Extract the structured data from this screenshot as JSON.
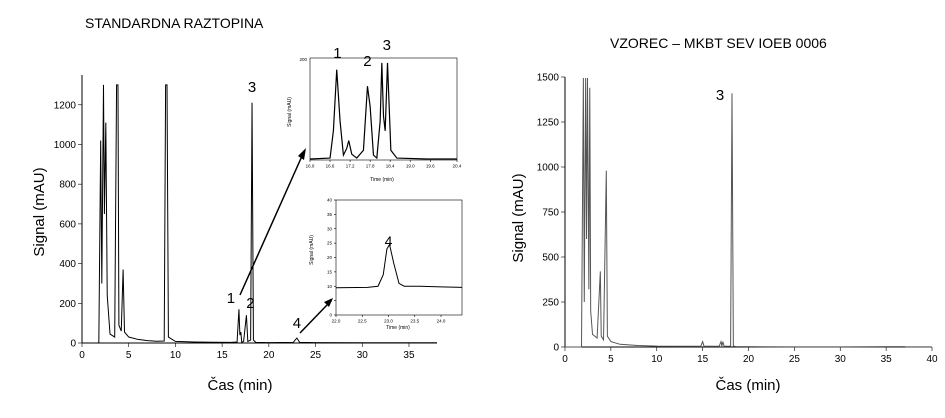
{
  "chart_data": [
    {
      "type": "line",
      "title": "STANDARDNA RAZTOPINA",
      "xlabel": "Čas (min)",
      "ylabel": "Signal (mAU)",
      "xlim": [
        0,
        38
      ],
      "ylim": [
        0,
        1350
      ],
      "xticks": [
        "0",
        "5",
        "10",
        "15",
        "20",
        "25",
        "30",
        "35"
      ],
      "yticks": [
        "0",
        "200",
        "400",
        "600",
        "800",
        "1000",
        "1200"
      ],
      "line_color": "#000000",
      "peak_labels": [
        {
          "label": "1",
          "x": 16.8,
          "y": 170
        },
        {
          "label": "2",
          "x": 17.6,
          "y": 140
        },
        {
          "label": "3",
          "x": 18.2,
          "y": 1210
        },
        {
          "label": "4",
          "x": 23.0,
          "y": 25
        }
      ],
      "series": [
        {
          "points": [
            [
              0,
              0
            ],
            [
              1.8,
              0
            ],
            [
              2.0,
              1020
            ],
            [
              2.12,
              300
            ],
            [
              2.3,
              1300
            ],
            [
              2.4,
              650
            ],
            [
              2.55,
              1110
            ],
            [
              2.7,
              240
            ],
            [
              3.0,
              45
            ],
            [
              3.5,
              30
            ],
            [
              3.7,
              1300
            ],
            [
              3.85,
              1300
            ],
            [
              3.95,
              90
            ],
            [
              4.2,
              60
            ],
            [
              4.4,
              370
            ],
            [
              4.55,
              55
            ],
            [
              5,
              30
            ],
            [
              6,
              18
            ],
            [
              7,
              12
            ],
            [
              8,
              9
            ],
            [
              8.8,
              10
            ],
            [
              8.95,
              1300
            ],
            [
              9.1,
              1300
            ],
            [
              9.25,
              30
            ],
            [
              10,
              8
            ],
            [
              12,
              5
            ],
            [
              14,
              4
            ],
            [
              16,
              3
            ],
            [
              16.6,
              5
            ],
            [
              16.8,
              170
            ],
            [
              16.9,
              40
            ],
            [
              17.0,
              55
            ],
            [
              17.1,
              4
            ],
            [
              17.3,
              8
            ],
            [
              17.6,
              140
            ],
            [
              17.75,
              8
            ],
            [
              18.05,
              15
            ],
            [
              18.2,
              1210
            ],
            [
              18.35,
              15
            ],
            [
              18.6,
              3
            ],
            [
              20,
              2
            ],
            [
              22.6,
              3
            ],
            [
              23.0,
              25
            ],
            [
              23.3,
              3
            ],
            [
              25,
              2
            ],
            [
              30,
              1
            ],
            [
              35,
              1
            ],
            [
              38,
              1
            ]
          ]
        }
      ]
    },
    {
      "type": "line",
      "title": "",
      "xlabel": "Time (min)",
      "ylabel": "Signal (mAU)",
      "xlim": [
        16.0,
        20.4
      ],
      "xticks": [
        "16.0",
        "16.6",
        "17.2",
        "17.8",
        "18.4",
        "19.0",
        "19.6",
        "20.4"
      ],
      "yticks": [
        "200"
      ],
      "line_color": "#000000",
      "peak_labels": [
        {
          "label": "1",
          "x": 16.82
        },
        {
          "label": "2",
          "x": 17.72
        },
        {
          "label": "3",
          "x": 18.3
        }
      ],
      "series": [
        {
          "points": [
            [
              16.0,
              0.01
            ],
            [
              16.6,
              0.02
            ],
            [
              16.7,
              0.3
            ],
            [
              16.8,
              0.93
            ],
            [
              16.9,
              0.4
            ],
            [
              17.0,
              0.05
            ],
            [
              17.1,
              0.12
            ],
            [
              17.16,
              0.2
            ],
            [
              17.25,
              0.06
            ],
            [
              17.4,
              0.02
            ],
            [
              17.6,
              0.1
            ],
            [
              17.72,
              0.76
            ],
            [
              17.8,
              0.55
            ],
            [
              17.9,
              0.05
            ],
            [
              18.0,
              0.02
            ],
            [
              18.1,
              0.4
            ],
            [
              18.15,
              1.0
            ],
            [
              18.2,
              0.45
            ],
            [
              18.25,
              0.3
            ],
            [
              18.32,
              1.0
            ],
            [
              18.42,
              0.1
            ],
            [
              18.6,
              0.02
            ],
            [
              19.5,
              0.01
            ],
            [
              20.4,
              0.01
            ]
          ]
        }
      ]
    },
    {
      "type": "line",
      "title": "",
      "xlabel": "Time (min)",
      "ylabel": "Signal (mAU)",
      "xlim": [
        22.0,
        24.4
      ],
      "ylim": [
        0,
        40
      ],
      "xticks": [
        "22.0",
        "22.5",
        "23.0",
        "23.5",
        "24.0"
      ],
      "yticks": [
        "0",
        "5",
        "10",
        "15",
        "20",
        "25",
        "30",
        "35",
        "40"
      ],
      "line_color": "#000000",
      "peak_labels": [
        {
          "label": "4",
          "x": 23.0,
          "y": 25
        }
      ],
      "series": [
        {
          "points": [
            [
              22.0,
              9.5
            ],
            [
              22.6,
              9.6
            ],
            [
              22.8,
              10
            ],
            [
              22.9,
              14
            ],
            [
              22.97,
              23
            ],
            [
              23.02,
              24.5
            ],
            [
              23.1,
              18
            ],
            [
              23.2,
              11
            ],
            [
              23.3,
              10
            ],
            [
              23.6,
              10
            ],
            [
              24.0,
              9.8
            ],
            [
              24.4,
              9.6
            ]
          ]
        }
      ]
    },
    {
      "type": "line",
      "title": "VZOREC – MKBT SEV IOEB 0006",
      "xlabel": "Čas (min)",
      "ylabel": "Signal (mAU)",
      "xlim": [
        0,
        40
      ],
      "ylim": [
        0,
        1500
      ],
      "xticks": [
        "0",
        "5",
        "10",
        "15",
        "20",
        "25",
        "30",
        "35",
        "40"
      ],
      "yticks": [
        "0",
        "250",
        "500",
        "750",
        "1000",
        "1250",
        "1500"
      ],
      "line_color": "#555555",
      "peak_labels": [
        {
          "label": "3",
          "x": 18.2,
          "y": 1410
        }
      ],
      "series": [
        {
          "points": [
            [
              0,
              0
            ],
            [
              1.8,
              0
            ],
            [
              2.0,
              1500
            ],
            [
              2.1,
              250
            ],
            [
              2.25,
              1500
            ],
            [
              2.35,
              600
            ],
            [
              2.45,
              1500
            ],
            [
              2.6,
              320
            ],
            [
              2.7,
              1440
            ],
            [
              2.8,
              200
            ],
            [
              3.0,
              70
            ],
            [
              3.5,
              50
            ],
            [
              3.85,
              420
            ],
            [
              3.95,
              60
            ],
            [
              4.2,
              40
            ],
            [
              4.5,
              980
            ],
            [
              4.62,
              60
            ],
            [
              5,
              30
            ],
            [
              6,
              15
            ],
            [
              8,
              8
            ],
            [
              10,
              5
            ],
            [
              14.8,
              4
            ],
            [
              15.0,
              30
            ],
            [
              15.15,
              4
            ],
            [
              16.8,
              4
            ],
            [
              17.0,
              30
            ],
            [
              17.1,
              5
            ],
            [
              17.2,
              30
            ],
            [
              17.35,
              4
            ],
            [
              18.05,
              5
            ],
            [
              18.2,
              1410
            ],
            [
              18.35,
              5
            ],
            [
              18.6,
              3
            ],
            [
              20,
              2
            ],
            [
              25,
              1
            ],
            [
              30,
              1
            ],
            [
              37,
              2
            ],
            [
              37.2,
              1
            ],
            [
              40,
              1
            ]
          ]
        }
      ]
    }
  ]
}
